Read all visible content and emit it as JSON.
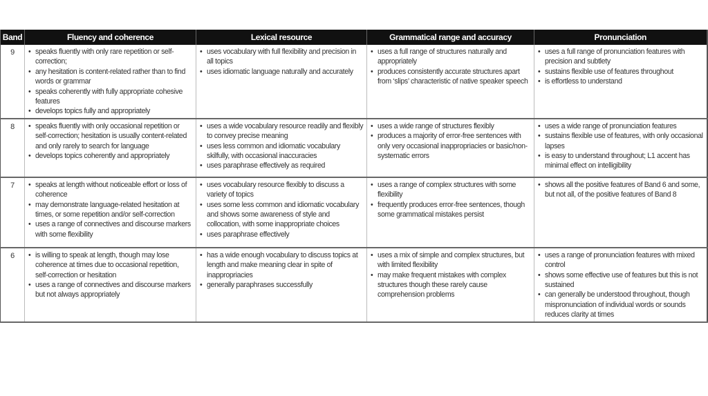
{
  "table": {
    "headers": [
      "Band",
      "Fluency and coherence",
      "Lexical resource",
      "Grammatical range and accuracy",
      "Pronunciation"
    ],
    "rows": [
      {
        "band": "9",
        "fluency": [
          "speaks fluently with only rare repetition or self-correction;",
          "any hesitation is content-related rather than to find words or grammar",
          "speaks coherently with fully appropriate cohesive features",
          "develops topics fully and appropriately"
        ],
        "lexical": [
          "uses vocabulary with full flexibility and precision in all topics",
          "uses idiomatic language naturally and accurately"
        ],
        "grammar": [
          "uses a full range of structures naturally and appropriately",
          "produces consistently accurate structures apart from ‘slips’ characteristic of native speaker speech"
        ],
        "pronunciation": [
          "uses a full range of pronunciation features with precision and subtlety",
          "sustains flexible use of features throughout",
          "is effortless to understand"
        ]
      },
      {
        "band": "8",
        "fluency": [
          "speaks fluently with only occasional repetition or self-correction; hesitation is usually content-related and only rarely to search for language",
          "develops topics coherently and appropriately"
        ],
        "lexical": [
          "uses a wide vocabulary resource readily and flexibly to convey precise meaning",
          "uses less common and idiomatic vocabulary skilfully, with occasional inaccuracies",
          "uses paraphrase effectively as required"
        ],
        "grammar": [
          "uses a wide range of structures flexibly",
          "produces a majority of error-free sentences with only very occasional inappropriacies or basic/non-systematic errors"
        ],
        "pronunciation": [
          "uses a wide range of pronunciation features",
          "sustains flexible use of features, with only occasional lapses",
          "is easy to understand throughout; L1 accent has minimal effect on intelligibility"
        ]
      },
      {
        "band": "7",
        "fluency": [
          "speaks at length without noticeable effort or loss of coherence",
          "may demonstrate language-related hesitation at times, or some repetition and/or self-correction",
          "uses a range of connectives and discourse markers with some flexibility"
        ],
        "lexical": [
          "uses vocabulary resource flexibly to discuss a variety of topics",
          "uses some less common and idiomatic vocabulary and shows some awareness of style and collocation, with some inappropriate choices",
          "uses paraphrase effectively"
        ],
        "grammar": [
          "uses a range of complex structures with some flexibility",
          "frequently produces error-free sentences, though some grammatical mistakes persist"
        ],
        "pronunciation": [
          "shows all the positive features of Band 6 and some, but not all, of the positive features of Band 8"
        ]
      },
      {
        "band": "6",
        "fluency": [
          "is willing to speak at length, though may lose coherence at times due to occasional repetition, self-correction or hesitation",
          "uses a range of connectives and discourse markers but not always appropriately"
        ],
        "lexical": [
          "has a wide enough vocabulary to discuss topics at length and make meaning clear in spite of inappropriacies",
          "generally paraphrases successfully"
        ],
        "grammar": [
          "uses a mix of simple and complex structures, but with limited flexibility",
          "may make frequent mistakes with complex structures though these rarely cause comprehension problems"
        ],
        "pronunciation": [
          "uses a range of pronunciation features with mixed control",
          "shows some effective use of features but this is not sustained",
          "can generally be understood throughout, though mispronunciation of individual words or sounds reduces clarity at times"
        ]
      }
    ]
  }
}
